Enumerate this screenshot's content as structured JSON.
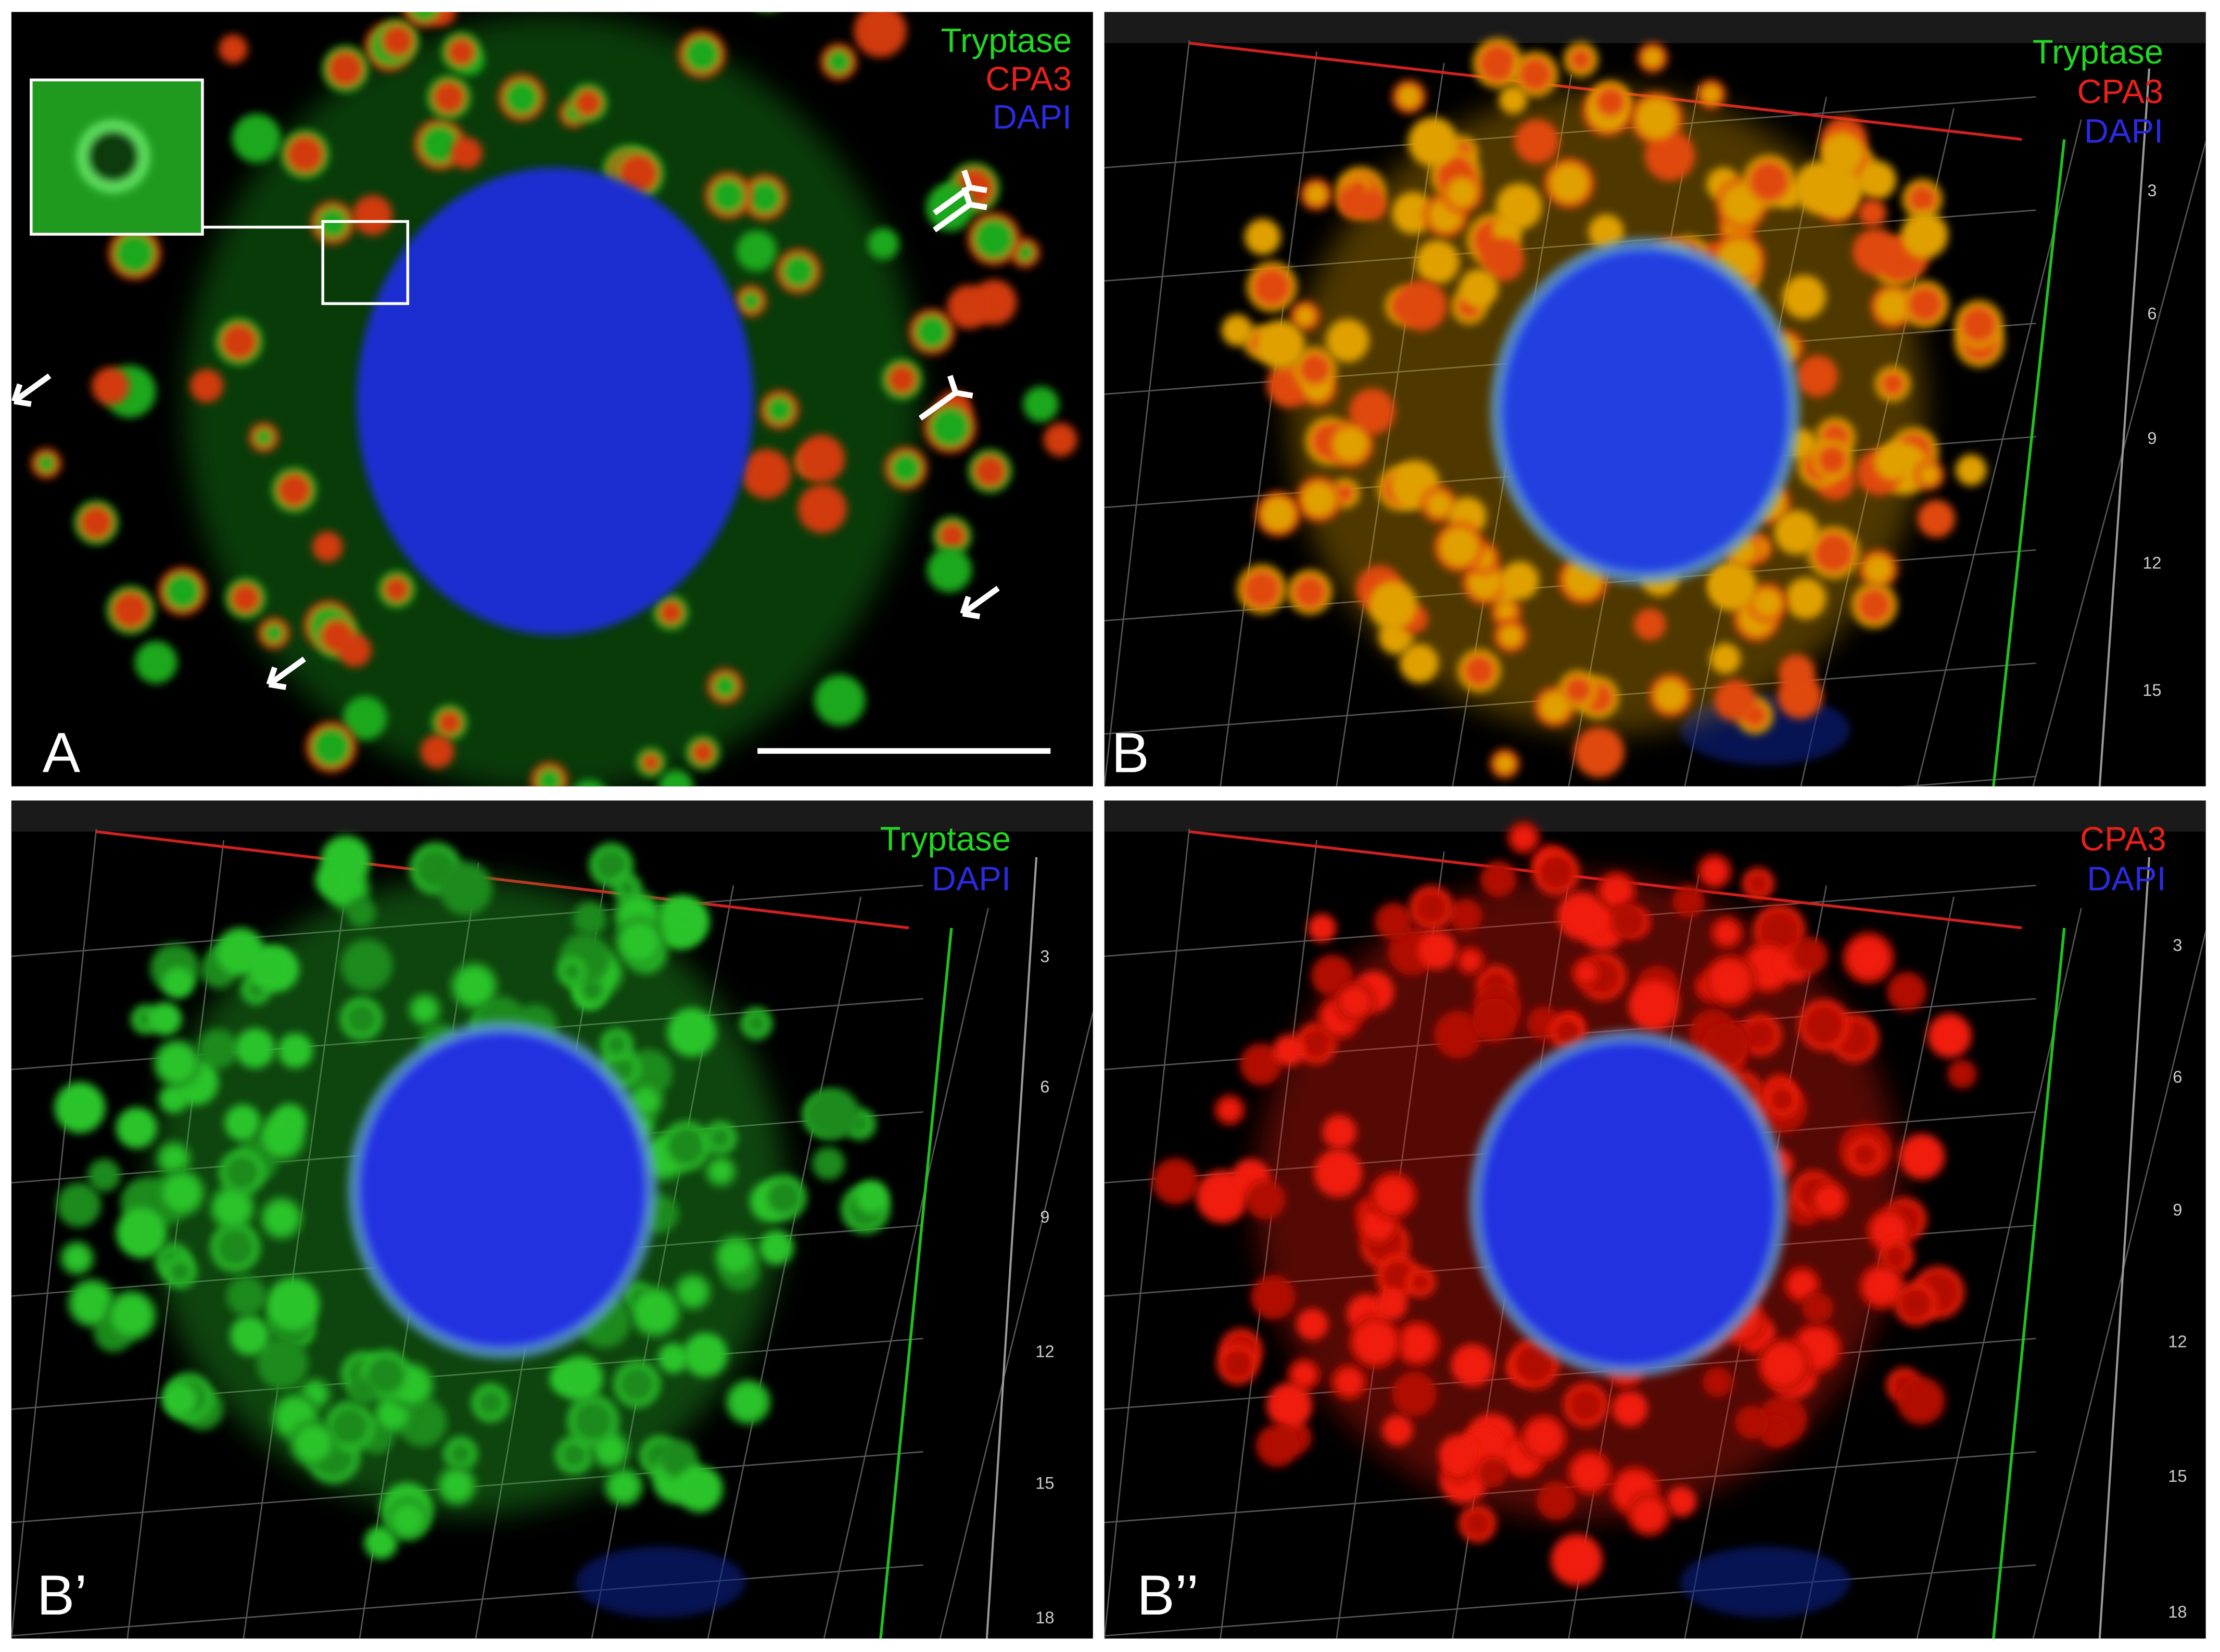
{
  "panels": [
    {
      "label": "A",
      "legend": [
        {
          "text": "Tryptase",
          "color": "#22d622"
        },
        {
          "text": "CPA3",
          "color": "#e8201a"
        },
        {
          "text": "DAPI",
          "color": "#2a2ae0"
        }
      ]
    },
    {
      "label": "B",
      "legend": [
        {
          "text": "Tryptase",
          "color": "#22d622"
        },
        {
          "text": "CPA3",
          "color": "#e8201a"
        },
        {
          "text": "DAPI",
          "color": "#2a2ae0"
        }
      ],
      "axis_labels": [
        "3",
        "6",
        "9",
        "12",
        "15"
      ]
    },
    {
      "label": "B’",
      "legend": [
        {
          "text": "Tryptase",
          "color": "#22d622"
        },
        {
          "text": "DAPI",
          "color": "#2a2ae0"
        }
      ],
      "axis_labels": [
        "3",
        "6",
        "9",
        "12",
        "15",
        "18"
      ]
    },
    {
      "label": "B’’",
      "legend": [
        {
          "text": "CPA3",
          "color": "#e8201a"
        },
        {
          "text": "DAPI",
          "color": "#2a2ae0"
        }
      ],
      "axis_labels": [
        "3",
        "6",
        "9",
        "12",
        "15",
        "18"
      ]
    }
  ]
}
